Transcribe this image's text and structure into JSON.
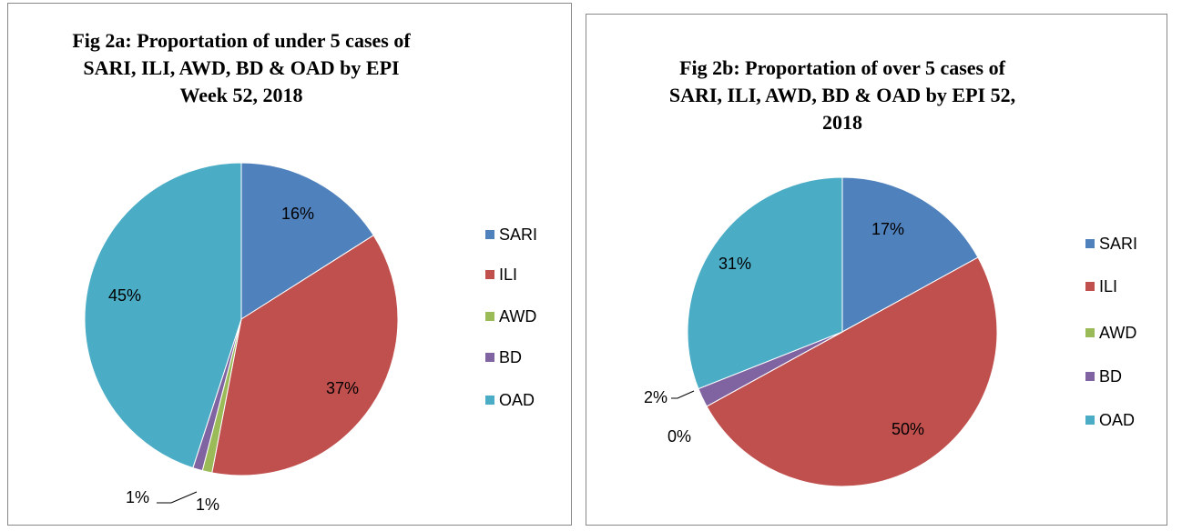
{
  "chart_data": [
    {
      "type": "pie",
      "title": "Fig 2a: Proportation of under 5 cases of SARI, ILI, AWD, BD & OAD by EPI Week 52, 2018",
      "categories": [
        "SARI",
        "ILI",
        "AWD",
        "BD",
        "OAD"
      ],
      "values": [
        16,
        37,
        1,
        1,
        45
      ],
      "value_labels": [
        "16%",
        "37%",
        "1%",
        "1%",
        "45%"
      ],
      "colors": [
        "#4f81bd",
        "#c0504d",
        "#9bbb59",
        "#8064a2",
        "#4bacc6"
      ],
      "legend": "right"
    },
    {
      "type": "pie",
      "title": "Fig 2b: Proportation of over 5 cases of SARI, ILI, AWD, BD & OAD by EPI 52, 2018",
      "categories": [
        "SARI",
        "ILI",
        "AWD",
        "BD",
        "OAD"
      ],
      "values": [
        17,
        50,
        0,
        2,
        31
      ],
      "value_labels": [
        "17%",
        "50%",
        "0%",
        "2%",
        "31%"
      ],
      "colors": [
        "#4f81bd",
        "#c0504d",
        "#9bbb59",
        "#8064a2",
        "#4bacc6"
      ],
      "legend": "right"
    }
  ]
}
